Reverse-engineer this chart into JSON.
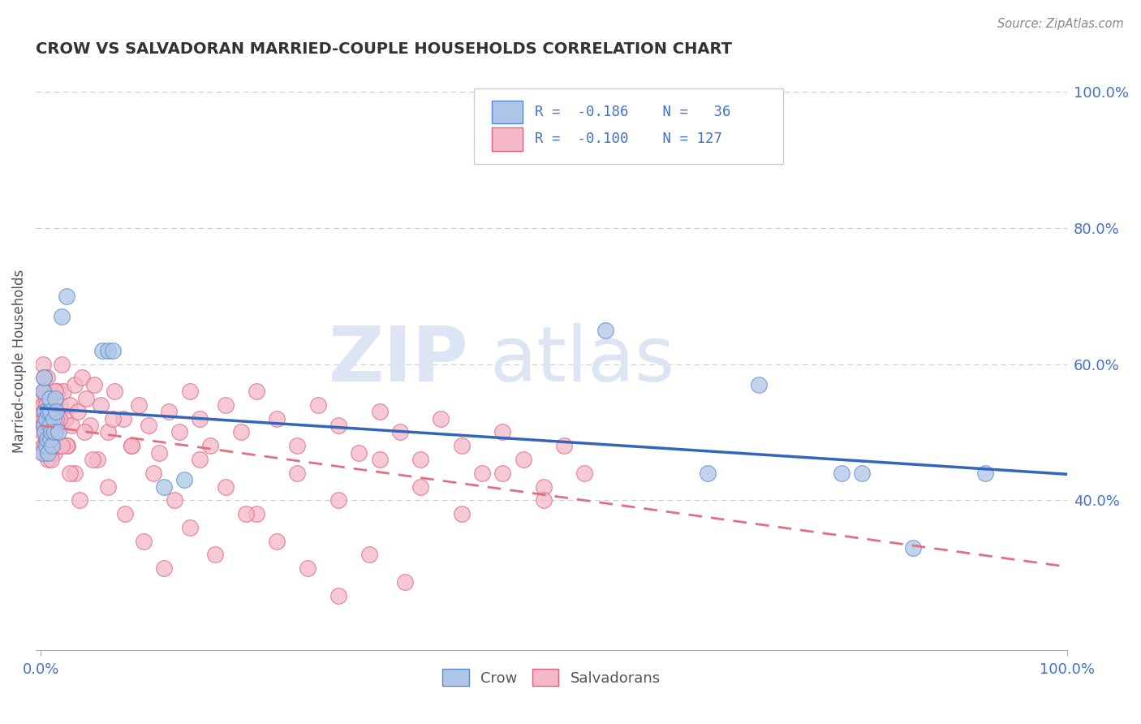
{
  "title": "CROW VS SALVADORAN MARRIED-COUPLE HOUSEHOLDS CORRELATION CHART",
  "source": "Source: ZipAtlas.com",
  "ylabel": "Married-couple Households",
  "watermark_zip": "ZIP",
  "watermark_atlas": "atlas",
  "crow_R": -0.186,
  "crow_N": 36,
  "salv_R": -0.1,
  "salv_N": 127,
  "legend_entries": [
    "Crow",
    "Salvadorans"
  ],
  "crow_color": "#aec6e8",
  "salv_color": "#f4b8c8",
  "crow_edge_color": "#5588cc",
  "salv_edge_color": "#e06080",
  "crow_line_color": "#3366bb",
  "salv_line_color": "#e07080",
  "legend_text_color": "#4472c4",
  "background_color": "#ffffff",
  "grid_color": "#cccccc",
  "ytick_color": "#4472c4",
  "xtick_color": "#4472c4",
  "ylabel_color": "#555555",
  "title_color": "#333333",
  "source_color": "#888888",
  "ylim_min": 0.18,
  "ylim_max": 1.03,
  "yticks": [
    0.4,
    0.6,
    0.8,
    1.0
  ],
  "ytick_labels": [
    "40.0%",
    "60.0%",
    "80.0%",
    "100.0%"
  ],
  "crow_scatter_x": [
    0.001,
    0.002,
    0.003,
    0.003,
    0.004,
    0.004,
    0.005,
    0.005,
    0.006,
    0.007,
    0.007,
    0.008,
    0.008,
    0.009,
    0.009,
    0.01,
    0.011,
    0.012,
    0.013,
    0.014,
    0.015,
    0.017,
    0.02,
    0.025,
    0.06,
    0.065,
    0.07,
    0.12,
    0.14,
    0.55,
    0.65,
    0.7,
    0.78,
    0.8,
    0.85,
    0.92
  ],
  "crow_scatter_y": [
    0.47,
    0.56,
    0.51,
    0.58,
    0.53,
    0.5,
    0.48,
    0.52,
    0.49,
    0.53,
    0.47,
    0.51,
    0.55,
    0.49,
    0.53,
    0.5,
    0.48,
    0.52,
    0.5,
    0.55,
    0.53,
    0.5,
    0.67,
    0.7,
    0.62,
    0.62,
    0.62,
    0.42,
    0.43,
    0.65,
    0.44,
    0.57,
    0.44,
    0.44,
    0.33,
    0.44
  ],
  "salv_scatter_x": [
    0.001,
    0.001,
    0.002,
    0.002,
    0.002,
    0.003,
    0.003,
    0.003,
    0.004,
    0.004,
    0.004,
    0.005,
    0.005,
    0.005,
    0.006,
    0.006,
    0.007,
    0.007,
    0.007,
    0.008,
    0.008,
    0.009,
    0.009,
    0.01,
    0.01,
    0.011,
    0.011,
    0.012,
    0.013,
    0.013,
    0.014,
    0.015,
    0.016,
    0.017,
    0.018,
    0.019,
    0.02,
    0.022,
    0.024,
    0.026,
    0.028,
    0.03,
    0.033,
    0.036,
    0.04,
    0.044,
    0.048,
    0.052,
    0.058,
    0.065,
    0.072,
    0.08,
    0.088,
    0.095,
    0.105,
    0.115,
    0.125,
    0.135,
    0.145,
    0.155,
    0.165,
    0.18,
    0.195,
    0.21,
    0.23,
    0.25,
    0.27,
    0.29,
    0.31,
    0.33,
    0.35,
    0.37,
    0.39,
    0.41,
    0.43,
    0.45,
    0.47,
    0.49,
    0.51,
    0.53,
    0.002,
    0.003,
    0.004,
    0.006,
    0.008,
    0.01,
    0.014,
    0.018,
    0.025,
    0.033,
    0.042,
    0.055,
    0.07,
    0.088,
    0.11,
    0.13,
    0.155,
    0.18,
    0.21,
    0.25,
    0.29,
    0.33,
    0.37,
    0.41,
    0.45,
    0.49,
    0.003,
    0.005,
    0.007,
    0.01,
    0.015,
    0.02,
    0.028,
    0.038,
    0.05,
    0.065,
    0.082,
    0.1,
    0.12,
    0.145,
    0.17,
    0.2,
    0.23,
    0.26,
    0.29,
    0.32,
    0.355
  ],
  "salv_scatter_y": [
    0.5,
    0.55,
    0.52,
    0.48,
    0.54,
    0.51,
    0.47,
    0.53,
    0.5,
    0.56,
    0.48,
    0.52,
    0.49,
    0.55,
    0.51,
    0.47,
    0.53,
    0.5,
    0.46,
    0.52,
    0.48,
    0.54,
    0.5,
    0.51,
    0.47,
    0.53,
    0.49,
    0.55,
    0.51,
    0.47,
    0.53,
    0.5,
    0.56,
    0.52,
    0.48,
    0.54,
    0.6,
    0.56,
    0.52,
    0.48,
    0.54,
    0.51,
    0.57,
    0.53,
    0.58,
    0.55,
    0.51,
    0.57,
    0.54,
    0.5,
    0.56,
    0.52,
    0.48,
    0.54,
    0.51,
    0.47,
    0.53,
    0.5,
    0.56,
    0.52,
    0.48,
    0.54,
    0.5,
    0.56,
    0.52,
    0.48,
    0.54,
    0.51,
    0.47,
    0.53,
    0.5,
    0.46,
    0.52,
    0.48,
    0.44,
    0.5,
    0.46,
    0.42,
    0.48,
    0.44,
    0.6,
    0.56,
    0.52,
    0.58,
    0.54,
    0.5,
    0.56,
    0.52,
    0.48,
    0.44,
    0.5,
    0.46,
    0.52,
    0.48,
    0.44,
    0.4,
    0.46,
    0.42,
    0.38,
    0.44,
    0.4,
    0.46,
    0.42,
    0.38,
    0.44,
    0.4,
    0.58,
    0.54,
    0.5,
    0.46,
    0.52,
    0.48,
    0.44,
    0.4,
    0.46,
    0.42,
    0.38,
    0.34,
    0.3,
    0.36,
    0.32,
    0.38,
    0.34,
    0.3,
    0.26,
    0.32,
    0.28
  ]
}
